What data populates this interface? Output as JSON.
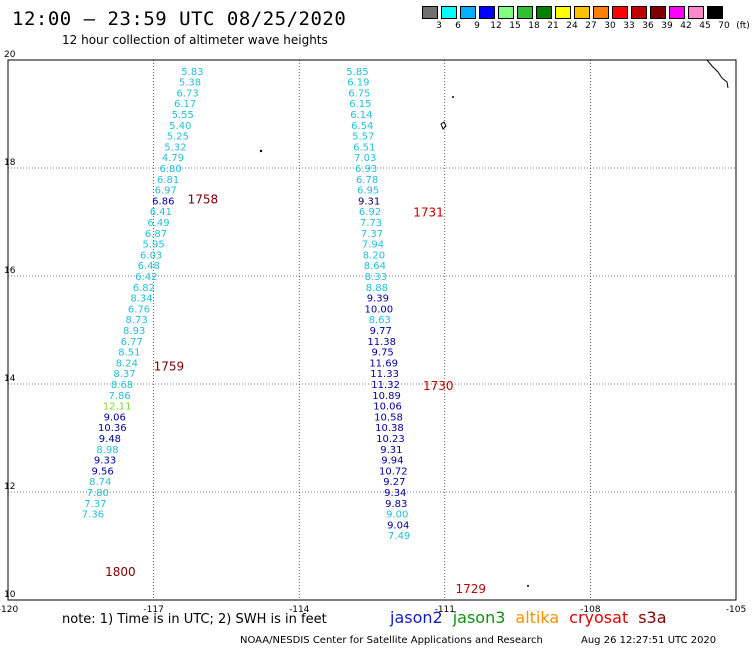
{
  "header": {
    "title": "12:00 – 23:59 UTC 08/25/2020",
    "subtitle": "12 hour collection of altimeter wave heights"
  },
  "legend": {
    "unit": "(ft)",
    "colors": [
      "#707070",
      "#00ffff",
      "#00b0ff",
      "#0000ff",
      "#80ff80",
      "#30c030",
      "#008000",
      "#ffff00",
      "#ffc000",
      "#ff8000",
      "#ff0000",
      "#c00000",
      "#800000",
      "#ff00ff",
      "#ff88cc",
      "#000000"
    ],
    "labels": [
      "3",
      "6",
      "9",
      "12",
      "15",
      "18",
      "21",
      "24",
      "27",
      "30",
      "33",
      "36",
      "39",
      "42",
      "45",
      "70"
    ]
  },
  "axes": {
    "lon_range": [
      -120,
      -105
    ],
    "lat_range": [
      10,
      20
    ],
    "x_ticks": [
      "-120",
      "-117",
      "-114",
      "-111",
      "-108",
      "-105"
    ],
    "y_ticks": [
      "20",
      "18",
      "16",
      "14",
      "12",
      "10"
    ]
  },
  "track_colors": {
    "cyan": "#22bfd8",
    "blue": "#00009a",
    "darkblue": "#00005a",
    "green": "#7fd63a",
    "lightcyan": "#33ccee"
  },
  "tracks": [
    {
      "name": "west",
      "points": [
        {
          "lon": -116.2,
          "lat": 19.8,
          "v": "5.83",
          "c": "cyan"
        },
        {
          "lon": -116.25,
          "lat": 19.6,
          "v": "5.38",
          "c": "cyan"
        },
        {
          "lon": -116.3,
          "lat": 19.4,
          "v": "6.73",
          "c": "cyan"
        },
        {
          "lon": -116.35,
          "lat": 19.2,
          "v": "6.17",
          "c": "cyan"
        },
        {
          "lon": -116.4,
          "lat": 19.0,
          "v": "5.55",
          "c": "cyan"
        },
        {
          "lon": -116.45,
          "lat": 18.8,
          "v": "5.40",
          "c": "cyan"
        },
        {
          "lon": -116.5,
          "lat": 18.6,
          "v": "5.25",
          "c": "cyan"
        },
        {
          "lon": -116.55,
          "lat": 18.4,
          "v": "5.32",
          "c": "cyan"
        },
        {
          "lon": -116.6,
          "lat": 18.2,
          "v": "4.79",
          "c": "cyan"
        },
        {
          "lon": -116.65,
          "lat": 18.0,
          "v": "6.80",
          "c": "cyan"
        },
        {
          "lon": -116.7,
          "lat": 17.8,
          "v": "6.81",
          "c": "cyan"
        },
        {
          "lon": -116.75,
          "lat": 17.6,
          "v": "6.97",
          "c": "cyan"
        },
        {
          "lon": -116.8,
          "lat": 17.4,
          "v": "6.86",
          "c": "blue"
        },
        {
          "lon": -116.85,
          "lat": 17.2,
          "v": "6.41",
          "c": "cyan"
        },
        {
          "lon": -116.9,
          "lat": 17.0,
          "v": "6.49",
          "c": "cyan"
        },
        {
          "lon": -116.95,
          "lat": 16.8,
          "v": "6.87",
          "c": "cyan"
        },
        {
          "lon": -117.0,
          "lat": 16.6,
          "v": "5.95",
          "c": "cyan"
        },
        {
          "lon": -117.05,
          "lat": 16.4,
          "v": "6.03",
          "c": "cyan"
        },
        {
          "lon": -117.1,
          "lat": 16.2,
          "v": "6.48",
          "c": "cyan"
        },
        {
          "lon": -117.15,
          "lat": 16.0,
          "v": "6.42",
          "c": "cyan"
        },
        {
          "lon": -117.2,
          "lat": 15.8,
          "v": "6.82",
          "c": "cyan"
        },
        {
          "lon": -117.25,
          "lat": 15.6,
          "v": "8.34",
          "c": "cyan"
        },
        {
          "lon": -117.3,
          "lat": 15.4,
          "v": "6.76",
          "c": "cyan"
        },
        {
          "lon": -117.35,
          "lat": 15.2,
          "v": "8.73",
          "c": "cyan"
        },
        {
          "lon": -117.4,
          "lat": 15.0,
          "v": "8.93",
          "c": "cyan"
        },
        {
          "lon": -117.45,
          "lat": 14.8,
          "v": "6.77",
          "c": "cyan"
        },
        {
          "lon": -117.5,
          "lat": 14.6,
          "v": "8.51",
          "c": "cyan"
        },
        {
          "lon": -117.55,
          "lat": 14.4,
          "v": "8.24",
          "c": "cyan"
        },
        {
          "lon": -117.6,
          "lat": 14.2,
          "v": "8.37",
          "c": "cyan"
        },
        {
          "lon": -117.65,
          "lat": 14.0,
          "v": "8.68",
          "c": "cyan"
        },
        {
          "lon": -117.7,
          "lat": 13.8,
          "v": "7.86",
          "c": "cyan"
        },
        {
          "lon": -117.75,
          "lat": 13.6,
          "v": "12.11",
          "c": "green"
        },
        {
          "lon": -117.8,
          "lat": 13.4,
          "v": "9.06",
          "c": "blue"
        },
        {
          "lon": -117.85,
          "lat": 13.2,
          "v": "10.36",
          "c": "blue"
        },
        {
          "lon": -117.9,
          "lat": 13.0,
          "v": "9.48",
          "c": "blue"
        },
        {
          "lon": -117.95,
          "lat": 12.8,
          "v": "8.98",
          "c": "cyan"
        },
        {
          "lon": -118.0,
          "lat": 12.6,
          "v": "9.33",
          "c": "blue"
        },
        {
          "lon": -118.05,
          "lat": 12.4,
          "v": "9.56",
          "c": "blue"
        },
        {
          "lon": -118.1,
          "lat": 12.2,
          "v": "8.74",
          "c": "cyan"
        },
        {
          "lon": -118.15,
          "lat": 12.0,
          "v": "7.80",
          "c": "cyan"
        },
        {
          "lon": -118.2,
          "lat": 11.8,
          "v": "7.37",
          "c": "cyan"
        },
        {
          "lon": -118.25,
          "lat": 11.6,
          "v": "7.36",
          "c": "cyan"
        }
      ]
    },
    {
      "name": "east",
      "points": [
        {
          "lon": -112.8,
          "lat": 19.8,
          "v": "5.85",
          "c": "cyan"
        },
        {
          "lon": -112.78,
          "lat": 19.6,
          "v": "6.19",
          "c": "cyan"
        },
        {
          "lon": -112.76,
          "lat": 19.4,
          "v": "6.75",
          "c": "cyan"
        },
        {
          "lon": -112.74,
          "lat": 19.2,
          "v": "6.15",
          "c": "cyan"
        },
        {
          "lon": -112.72,
          "lat": 19.0,
          "v": "6.14",
          "c": "cyan"
        },
        {
          "lon": -112.7,
          "lat": 18.8,
          "v": "6.54",
          "c": "cyan"
        },
        {
          "lon": -112.68,
          "lat": 18.6,
          "v": "5.57",
          "c": "cyan"
        },
        {
          "lon": -112.66,
          "lat": 18.4,
          "v": "6.51",
          "c": "cyan"
        },
        {
          "lon": -112.64,
          "lat": 18.2,
          "v": "7.03",
          "c": "cyan"
        },
        {
          "lon": -112.62,
          "lat": 18.0,
          "v": "6.93",
          "c": "cyan"
        },
        {
          "lon": -112.6,
          "lat": 17.8,
          "v": "6.78",
          "c": "cyan"
        },
        {
          "lon": -112.58,
          "lat": 17.6,
          "v": "6.95",
          "c": "cyan"
        },
        {
          "lon": -112.56,
          "lat": 17.4,
          "v": "9.31",
          "c": "darkblue"
        },
        {
          "lon": -112.54,
          "lat": 17.2,
          "v": "6.92",
          "c": "cyan"
        },
        {
          "lon": -112.52,
          "lat": 17.0,
          "v": "7.73",
          "c": "cyan"
        },
        {
          "lon": -112.5,
          "lat": 16.8,
          "v": "7.37",
          "c": "cyan"
        },
        {
          "lon": -112.48,
          "lat": 16.6,
          "v": "7.94",
          "c": "cyan"
        },
        {
          "lon": -112.46,
          "lat": 16.4,
          "v": "8.20",
          "c": "cyan"
        },
        {
          "lon": -112.44,
          "lat": 16.2,
          "v": "8.64",
          "c": "cyan"
        },
        {
          "lon": -112.42,
          "lat": 16.0,
          "v": "8.33",
          "c": "cyan"
        },
        {
          "lon": -112.4,
          "lat": 15.8,
          "v": "8.88",
          "c": "cyan"
        },
        {
          "lon": -112.38,
          "lat": 15.6,
          "v": "9.39",
          "c": "blue"
        },
        {
          "lon": -112.36,
          "lat": 15.4,
          "v": "10.00",
          "c": "blue"
        },
        {
          "lon": -112.34,
          "lat": 15.2,
          "v": "8.63",
          "c": "cyan"
        },
        {
          "lon": -112.32,
          "lat": 15.0,
          "v": "9.77",
          "c": "blue"
        },
        {
          "lon": -112.3,
          "lat": 14.8,
          "v": "11.38",
          "c": "blue"
        },
        {
          "lon": -112.28,
          "lat": 14.6,
          "v": "9.75",
          "c": "blue"
        },
        {
          "lon": -112.26,
          "lat": 14.4,
          "v": "11.69",
          "c": "blue"
        },
        {
          "lon": -112.24,
          "lat": 14.2,
          "v": "11.33",
          "c": "blue"
        },
        {
          "lon": -112.22,
          "lat": 14.0,
          "v": "11.32",
          "c": "blue"
        },
        {
          "lon": -112.2,
          "lat": 13.8,
          "v": "10.89",
          "c": "blue"
        },
        {
          "lon": -112.18,
          "lat": 13.6,
          "v": "10.06",
          "c": "blue"
        },
        {
          "lon": -112.16,
          "lat": 13.4,
          "v": "10.58",
          "c": "blue"
        },
        {
          "lon": -112.14,
          "lat": 13.2,
          "v": "10.38",
          "c": "blue"
        },
        {
          "lon": -112.12,
          "lat": 13.0,
          "v": "10.23",
          "c": "blue"
        },
        {
          "lon": -112.1,
          "lat": 12.8,
          "v": "9.31",
          "c": "blue"
        },
        {
          "lon": -112.08,
          "lat": 12.6,
          "v": "9.94",
          "c": "blue"
        },
        {
          "lon": -112.06,
          "lat": 12.4,
          "v": "10.72",
          "c": "blue"
        },
        {
          "lon": -112.04,
          "lat": 12.2,
          "v": "9.27",
          "c": "blue"
        },
        {
          "lon": -112.02,
          "lat": 12.0,
          "v": "9.34",
          "c": "blue"
        },
        {
          "lon": -112.0,
          "lat": 11.8,
          "v": "9.83",
          "c": "blue"
        },
        {
          "lon": -111.98,
          "lat": 11.6,
          "v": "9.00",
          "c": "cyan"
        },
        {
          "lon": -111.96,
          "lat": 11.4,
          "v": "9.04",
          "c": "blue"
        },
        {
          "lon": -111.94,
          "lat": 11.2,
          "v": "7.49",
          "c": "cyan"
        }
      ]
    }
  ],
  "time_labels": [
    {
      "text": "1758",
      "lon": -116.3,
      "lat": 17.42,
      "color": "#7a0000"
    },
    {
      "text": "1731",
      "lon": -111.65,
      "lat": 17.18,
      "color": "#c00000"
    },
    {
      "text": "1759",
      "lon": -117.0,
      "lat": 14.32,
      "color": "#7a0000"
    },
    {
      "text": "1730",
      "lon": -111.45,
      "lat": 13.96,
      "color": "#c00000"
    },
    {
      "text": "1800",
      "lon": -118.0,
      "lat": 10.52,
      "color": "#7a0000"
    },
    {
      "text": "1729",
      "lon": -110.78,
      "lat": 10.2,
      "color": "#c00000"
    }
  ],
  "footer": {
    "note": "note:  1) Time is in UTC;  2) SWH is in feet",
    "satellites": [
      {
        "name": "jason2",
        "color": "#1020c0"
      },
      {
        "name": "jason3",
        "color": "#109010"
      },
      {
        "name": "altika",
        "color": "#ff9000"
      },
      {
        "name": "cryosat",
        "color": "#e00000"
      },
      {
        "name": "s3a",
        "color": "#800000"
      }
    ],
    "credit": "NOAA/NESDIS Center for Satellite Applications and Research",
    "timestamp": "Aug 26 12:27:51 UTC 2020"
  }
}
